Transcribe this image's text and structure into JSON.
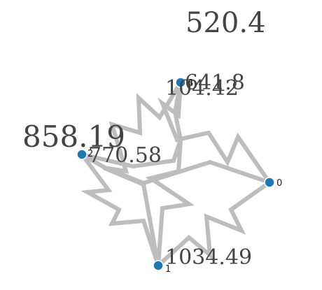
{
  "colors": {
    "node": "#1f77b4",
    "edge": "#bdbdbd",
    "label": "#444444"
  },
  "nodes": [
    {
      "id": "0",
      "value": ""
    },
    {
      "id": "1",
      "value": "1034.49"
    },
    {
      "id": "2",
      "value": "770.58"
    },
    {
      "id": "3",
      "value": "641.8"
    },
    {
      "id": "4",
      "value": "104.42"
    }
  ],
  "floating_labels": [
    {
      "text": "520.4"
    },
    {
      "text": "858.19"
    }
  ],
  "edges": [
    {
      "source": "3",
      "target": "0"
    },
    {
      "source": "3",
      "target": "1"
    },
    {
      "source": "3",
      "target": "2"
    },
    {
      "source": "2",
      "target": "0"
    },
    {
      "source": "2",
      "target": "1"
    },
    {
      "source": "0",
      "target": "1"
    }
  ]
}
